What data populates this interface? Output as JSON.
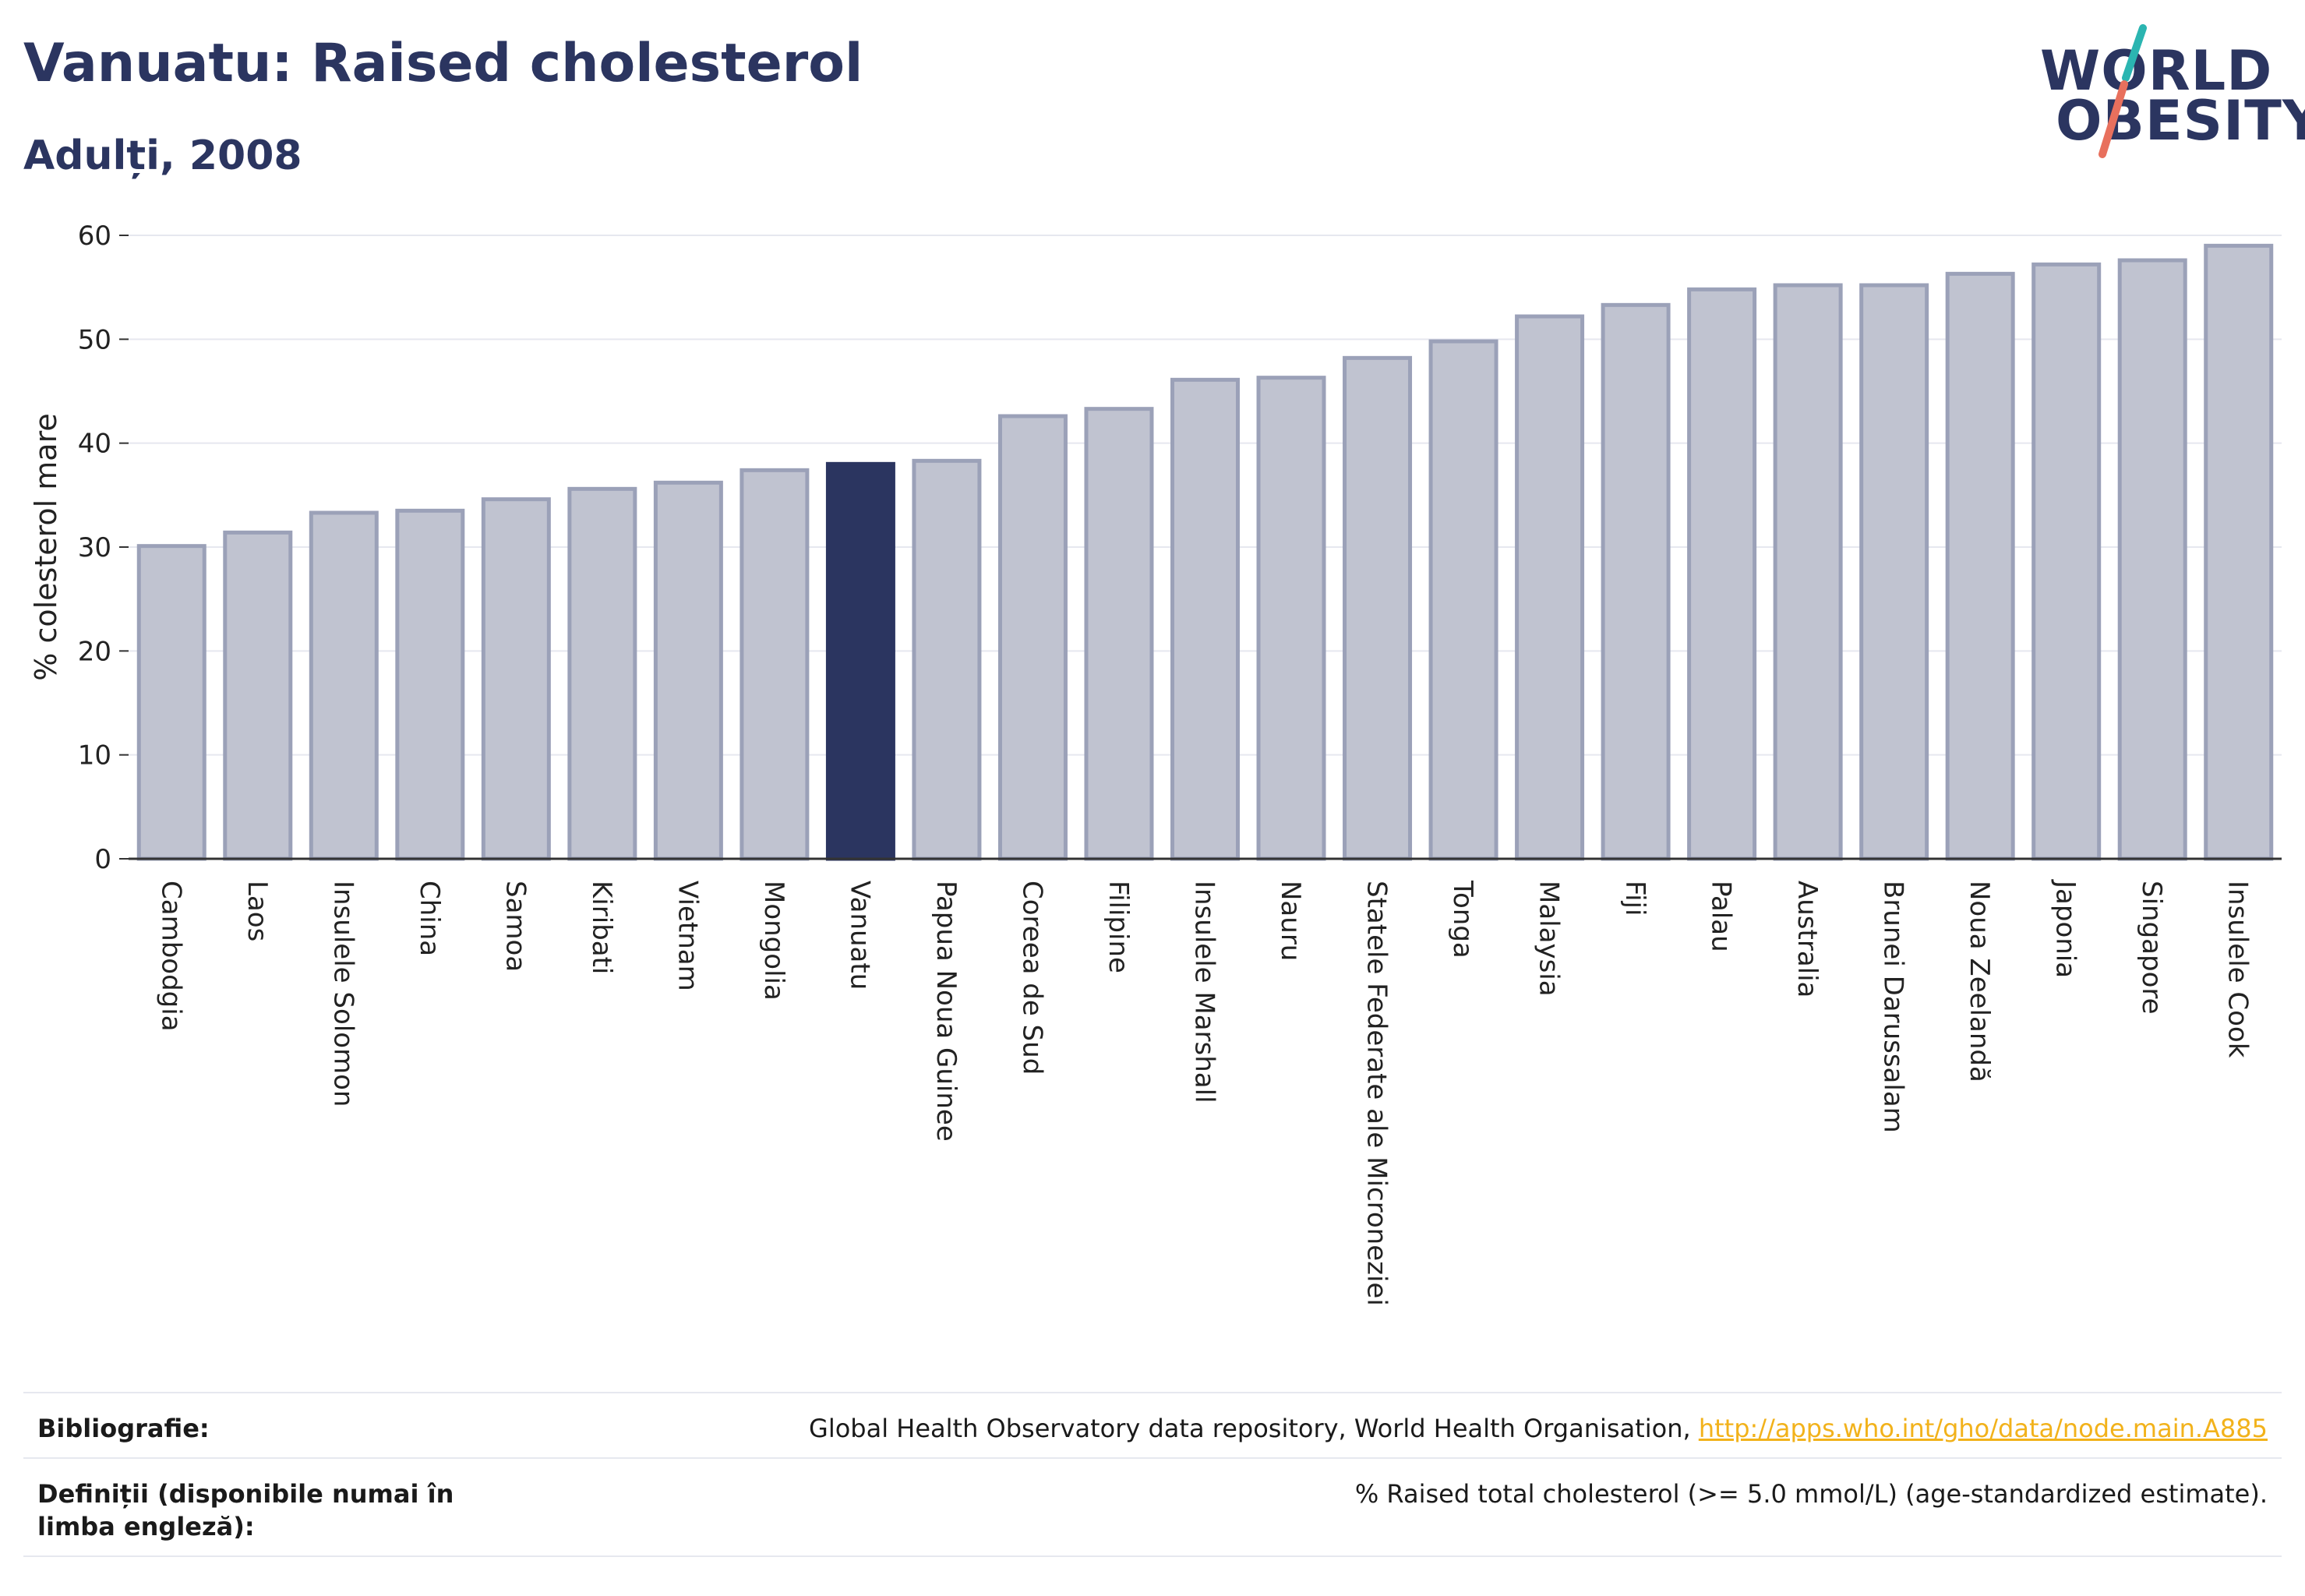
{
  "header": {
    "title": "Vanuatu: Raised cholesterol",
    "subtitle": "Adulți, 2008"
  },
  "logo": {
    "line1": "WORLD",
    "line2": "OBESITY"
  },
  "chart_data": {
    "type": "bar",
    "categories": [
      "Cambodgia",
      "Laos",
      "Insulele Solomon",
      "China",
      "Samoa",
      "Kiribati",
      "Vietnam",
      "Mongolia",
      "Vanuatu",
      "Papua Noua Guinee",
      "Coreea de Sud",
      "Filipine",
      "Insulele Marshall",
      "Nauru",
      "Statele Federate ale Microneziei",
      "Tonga",
      "Malaysia",
      "Fiji",
      "Palau",
      "Australia",
      "Brunei Darussalam",
      "Noua Zeelandă",
      "Japonia",
      "Singapore",
      "Insulele Cook"
    ],
    "values": [
      30.1,
      31.4,
      33.3,
      33.5,
      34.6,
      35.6,
      36.2,
      37.4,
      38.0,
      38.3,
      42.6,
      43.3,
      46.1,
      46.3,
      48.2,
      49.8,
      52.2,
      53.3,
      54.8,
      55.2,
      55.2,
      56.3,
      57.2,
      57.6,
      59.0
    ],
    "highlight": "Vanuatu",
    "ylabel": "% colesterol mare",
    "ylim": [
      0,
      60
    ],
    "yticks": [
      0,
      10,
      20,
      30,
      40,
      50,
      60
    ],
    "grid": true,
    "colors": {
      "bar": "#c0c3d0",
      "bar_edge": "#9ba1b8",
      "highlight": "#2b3560",
      "grid": "#e6e8ef",
      "axis": "#333333"
    }
  },
  "footer": {
    "bibliography_label": "Bibliografie:",
    "bibliography_text": "Global Health Observatory data repository, World Health Organisation, ",
    "bibliography_link": "http://apps.who.int/gho/data/node.main.A885",
    "definitions_label": "Definiții (disponibile numai în limba engleză):",
    "definitions_text": "% Raised total cholesterol (>= 5.0 mmol/L) (age-standardized estimate)."
  }
}
